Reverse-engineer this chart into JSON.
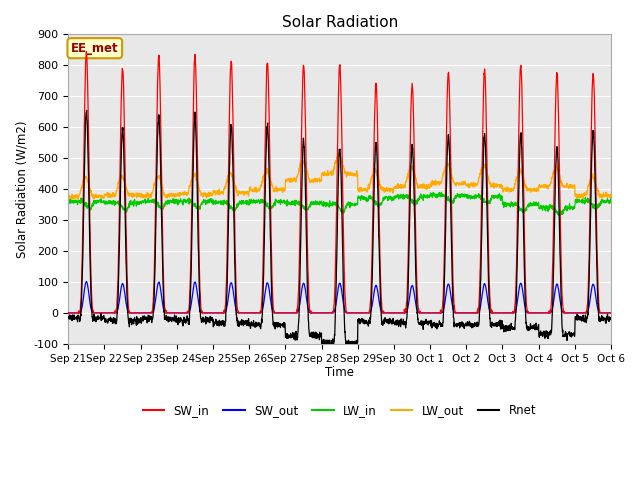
{
  "title": "Solar Radiation",
  "ylabel": "Solar Radiation (W/m2)",
  "xlabel": "Time",
  "annotation": "EE_met",
  "ylim": [
    -100,
    900
  ],
  "yticks": [
    -100,
    0,
    100,
    200,
    300,
    400,
    500,
    600,
    700,
    800,
    900
  ],
  "xtick_labels": [
    "Sep 21",
    "Sep 22",
    "Sep 23",
    "Sep 24",
    "Sep 25",
    "Sep 26",
    "Sep 27",
    "Sep 28",
    "Sep 29",
    "Sep 30",
    "Oct 1",
    "Oct 2",
    "Oct 3",
    "Oct 4",
    "Oct 5",
    "Oct 6"
  ],
  "n_days": 15,
  "colors": {
    "SW_in": "#ff0000",
    "SW_out": "#0000ff",
    "LW_in": "#00cc00",
    "LW_out": "#ffaa00",
    "Rnet": "#000000"
  },
  "bg_color": "#e8e8e8",
  "annotation_bg": "#ffffcc",
  "annotation_border": "#cc9900",
  "annotation_text_color": "#990000",
  "sw_peaks": [
    840,
    790,
    825,
    830,
    815,
    810,
    800,
    800,
    740,
    735,
    775,
    785,
    800,
    775,
    775
  ],
  "lw_in_base": [
    360,
    355,
    360,
    360,
    355,
    360,
    355,
    350,
    370,
    375,
    380,
    375,
    350,
    340,
    360
  ],
  "lw_out_base": [
    375,
    380,
    378,
    382,
    388,
    398,
    428,
    448,
    398,
    408,
    418,
    413,
    398,
    408,
    378
  ]
}
